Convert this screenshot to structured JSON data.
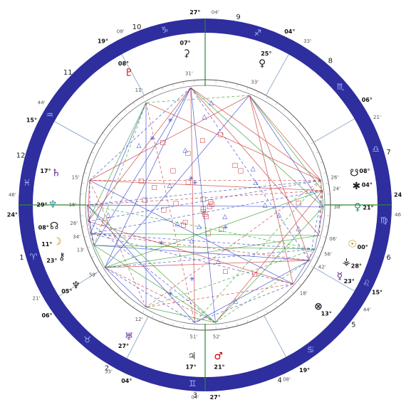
{
  "colors": {
    "outer_ring": "#2e2e9e",
    "zodiac_glyph": "#a8bcff",
    "planet_fire": "#c00000",
    "planet_air": "#5a1a8a",
    "planet_water": "#1a3ab0",
    "aspect_red": "#c83030",
    "aspect_blue": "#3040c8",
    "aspect_green": "#2a9a2a",
    "axis_green": "#2a8a2a"
  },
  "house_numbers": [
    {
      "label": "1",
      "a": 196
    },
    {
      "label": "2",
      "a": 239
    },
    {
      "label": "3",
      "a": 267
    },
    {
      "label": "4",
      "a": 293
    },
    {
      "label": "5",
      "a": 321
    },
    {
      "label": "6",
      "a": 344
    },
    {
      "label": "7",
      "a": 16
    },
    {
      "label": "8",
      "a": 49
    },
    {
      "label": "9",
      "a": 80
    },
    {
      "label": "10",
      "a": 111
    },
    {
      "label": "11",
      "a": 136
    },
    {
      "label": "12",
      "a": 165
    }
  ],
  "zodiac_signs": [
    {
      "glyph": "♑",
      "a": 103
    },
    {
      "glyph": "♒",
      "a": 150
    },
    {
      "glyph": "♓",
      "a": 173
    },
    {
      "glyph": "♈",
      "a": 197
    },
    {
      "glyph": "♉",
      "a": 229
    },
    {
      "glyph": "♊",
      "a": 266
    },
    {
      "glyph": "♋",
      "a": 306
    },
    {
      "glyph": "♌",
      "a": 334
    },
    {
      "glyph": "♍",
      "a": 355
    },
    {
      "glyph": "♎",
      "a": 18
    },
    {
      "glyph": "♏",
      "a": 41
    },
    {
      "glyph": "♐",
      "a": 73
    }
  ],
  "cusp_labels": [
    {
      "deg": "27°",
      "min": "04'",
      "a": 90
    },
    {
      "deg": "04°",
      "min": "33'",
      "a": 61
    },
    {
      "deg": "06°",
      "min": "21'",
      "a": 30
    },
    {
      "deg": "24",
      "min": "46",
      "a": 0
    },
    {
      "deg": "15°",
      "min": "44'",
      "a": 330
    },
    {
      "deg": "19°",
      "min": "08'",
      "a": 298
    },
    {
      "deg": "27°",
      "min": "04'",
      "a": 270
    },
    {
      "deg": "04°",
      "min": "33'",
      "a": 243
    },
    {
      "deg": "06°",
      "min": "21'",
      "a": 212
    },
    {
      "deg": "24°",
      "min": "46'",
      "a": 180
    },
    {
      "deg": "15°",
      "min": "44'",
      "a": 151
    },
    {
      "deg": "19°",
      "min": "08'",
      "a": 119
    }
  ],
  "planets": [
    {
      "glyph": "⚳",
      "deg": "07°",
      "min": "31'",
      "a": 97,
      "color": "#222"
    },
    {
      "glyph": "♀",
      "deg": "25°",
      "min": "33'",
      "a": 68,
      "color": "#222"
    },
    {
      "glyph": "♇",
      "deg": "08°",
      "min": "11'",
      "a": 120,
      "color": "#c00000"
    },
    {
      "glyph": "☋",
      "deg": "08°",
      "min": "26'",
      "a": 12,
      "color": "#222"
    },
    {
      "glyph": "✱",
      "deg": "04°",
      "min": "24'",
      "a": 7,
      "color": "#222"
    },
    {
      "glyph": "♀",
      "deg": "21°",
      "min": "38'",
      "a": 359,
      "color": "#2a8a8a"
    },
    {
      "glyph": "☉",
      "deg": "00°",
      "min": "06'",
      "a": 345,
      "color": "#b08a00"
    },
    {
      "glyph": "⚶",
      "deg": "28°",
      "min": "56'",
      "a": 338,
      "color": "#222"
    },
    {
      "glyph": "☿",
      "deg": "23°",
      "min": "42'",
      "a": 332,
      "color": "#5a1a8a"
    },
    {
      "glyph": "⊗",
      "deg": "13°",
      "min": "18'",
      "a": 318,
      "color": "#222"
    },
    {
      "glyph": "♂",
      "deg": "21°",
      "min": "52'",
      "a": 275,
      "color": "#c00000"
    },
    {
      "glyph": "♃",
      "deg": "17°",
      "min": "51'",
      "a": 265,
      "color": "#444"
    },
    {
      "glyph": "♅",
      "deg": "27°",
      "min": "12'",
      "a": 240,
      "color": "#5a1a8a"
    },
    {
      "glyph": "♆",
      "deg": "05°",
      "min": "59'",
      "a": 212,
      "color": "#222"
    },
    {
      "glyph": "⚷",
      "deg": "23°",
      "min": "13'",
      "a": 200,
      "color": "#222"
    },
    {
      "glyph": "☽",
      "deg": "11°",
      "min": "34'",
      "a": 194,
      "color": "#b08a00"
    },
    {
      "glyph": "☊",
      "deg": "08°",
      "min": "26'",
      "a": 188,
      "color": "#222"
    },
    {
      "glyph": "♆",
      "deg": "29°",
      "min": "16'",
      "a": 180,
      "color": "#2a8a8a"
    },
    {
      "glyph": "♄",
      "deg": "17°",
      "min": "15'",
      "a": 168,
      "color": "#5a1a8a"
    }
  ],
  "cusp_left": "24°",
  "cusp_left_min": "46'",
  "cusp_right": "24",
  "cusp_right_min": "46",
  "cusp_top": "27°",
  "cusp_top_min": "04'",
  "cusp_bottom": "27°",
  "cusp_bottom_min": "04'"
}
